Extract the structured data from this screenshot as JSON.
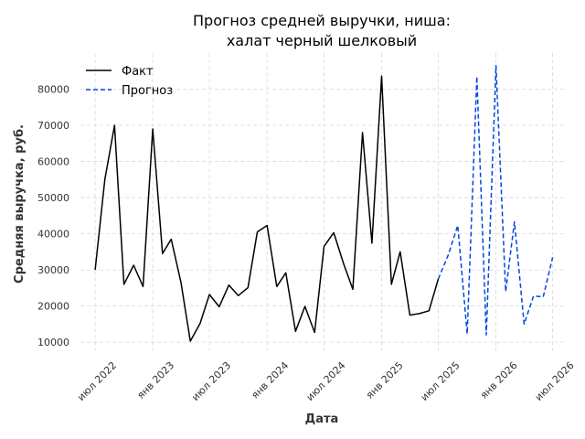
{
  "chart_data": {
    "type": "line",
    "title_lines": [
      "Прогноз средней выручки, ниша:",
      "халат черный шелковый"
    ],
    "xlabel": "Дата",
    "ylabel": "Средняя выручка, руб.",
    "x_ticks": [
      {
        "date": "2022-07-01",
        "label": "июл 2022"
      },
      {
        "date": "2023-01-01",
        "label": "янв 2023"
      },
      {
        "date": "2023-07-01",
        "label": "июл 2023"
      },
      {
        "date": "2024-01-01",
        "label": "янв 2024"
      },
      {
        "date": "2024-07-01",
        "label": "июл 2024"
      },
      {
        "date": "2025-01-01",
        "label": "янв 2025"
      },
      {
        "date": "2025-07-01",
        "label": "июл 2025"
      },
      {
        "date": "2026-01-01",
        "label": "янв 2026"
      },
      {
        "date": "2026-07-01",
        "label": "июл 2026"
      }
    ],
    "y_ticks": [
      10000,
      20000,
      30000,
      40000,
      50000,
      60000,
      70000,
      80000
    ],
    "xlim": [
      "2022-05-15",
      "2026-08-15"
    ],
    "ylim": [
      7000,
      90000
    ],
    "grid": true,
    "legend_position": "top-left",
    "series": [
      {
        "name": "Факт",
        "style": "solid",
        "color": "#000000",
        "points": [
          {
            "x": "2022-07-01",
            "y": 30000
          },
          {
            "x": "2022-08-01",
            "y": 55000
          },
          {
            "x": "2022-09-01",
            "y": 70000
          },
          {
            "x": "2022-10-01",
            "y": 26000
          },
          {
            "x": "2022-11-01",
            "y": 31300
          },
          {
            "x": "2022-12-01",
            "y": 25400
          },
          {
            "x": "2023-01-01",
            "y": 69000
          },
          {
            "x": "2023-02-01",
            "y": 34500
          },
          {
            "x": "2023-03-01",
            "y": 38500
          },
          {
            "x": "2023-04-01",
            "y": 26500
          },
          {
            "x": "2023-05-01",
            "y": 10300
          },
          {
            "x": "2023-06-01",
            "y": 15200
          },
          {
            "x": "2023-07-01",
            "y": 23200
          },
          {
            "x": "2023-08-01",
            "y": 19800
          },
          {
            "x": "2023-09-01",
            "y": 25800
          },
          {
            "x": "2023-10-01",
            "y": 22900
          },
          {
            "x": "2023-11-01",
            "y": 25100
          },
          {
            "x": "2023-12-01",
            "y": 40500
          },
          {
            "x": "2024-01-01",
            "y": 42300
          },
          {
            "x": "2024-02-01",
            "y": 25400
          },
          {
            "x": "2024-03-01",
            "y": 29200
          },
          {
            "x": "2024-04-01",
            "y": 13000
          },
          {
            "x": "2024-05-01",
            "y": 19900
          },
          {
            "x": "2024-06-01",
            "y": 12700
          },
          {
            "x": "2024-07-01",
            "y": 36500
          },
          {
            "x": "2024-08-01",
            "y": 40300
          },
          {
            "x": "2024-09-01",
            "y": 31800
          },
          {
            "x": "2024-10-01",
            "y": 24600
          },
          {
            "x": "2024-11-01",
            "y": 68000
          },
          {
            "x": "2024-12-01",
            "y": 37400
          },
          {
            "x": "2025-01-01",
            "y": 83600
          },
          {
            "x": "2025-02-01",
            "y": 26000
          },
          {
            "x": "2025-03-01",
            "y": 35000
          },
          {
            "x": "2025-04-01",
            "y": 17500
          },
          {
            "x": "2025-05-01",
            "y": 17900
          },
          {
            "x": "2025-06-01",
            "y": 18700
          },
          {
            "x": "2025-07-01",
            "y": 27500
          }
        ]
      },
      {
        "name": "Прогноз",
        "style": "dashed",
        "color": "#0047e0",
        "points": [
          {
            "x": "2025-07-01",
            "y": 27500
          },
          {
            "x": "2025-08-01",
            "y": 34000
          },
          {
            "x": "2025-09-01",
            "y": 42300
          },
          {
            "x": "2025-10-01",
            "y": 12300
          },
          {
            "x": "2025-11-01",
            "y": 83500
          },
          {
            "x": "2025-12-01",
            "y": 12000
          },
          {
            "x": "2026-01-01",
            "y": 86500
          },
          {
            "x": "2026-02-01",
            "y": 24000
          },
          {
            "x": "2026-03-01",
            "y": 43300
          },
          {
            "x": "2026-04-01",
            "y": 15000
          },
          {
            "x": "2026-05-01",
            "y": 22800
          },
          {
            "x": "2026-06-01",
            "y": 22500
          },
          {
            "x": "2026-07-01",
            "y": 33500
          }
        ]
      }
    ]
  }
}
